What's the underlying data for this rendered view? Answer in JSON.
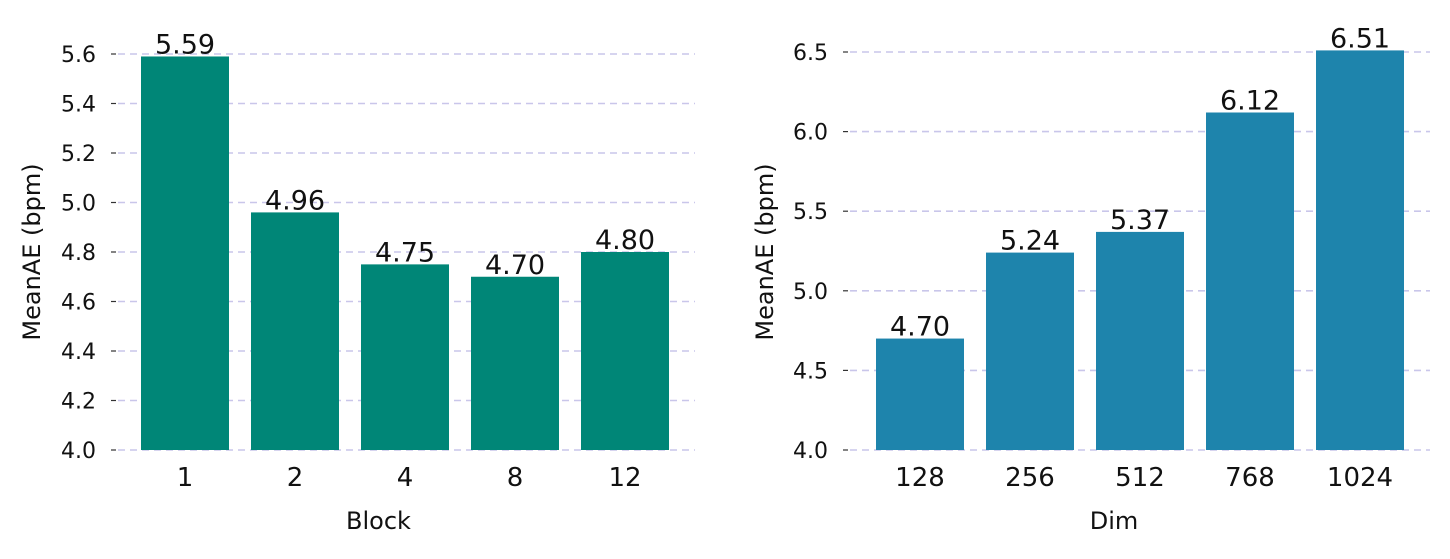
{
  "chart_data": [
    {
      "type": "bar",
      "title": "",
      "xlabel": "Block",
      "ylabel": "MeanAE (bpm)",
      "categories": [
        "1",
        "2",
        "4",
        "8",
        "12"
      ],
      "values": [
        5.59,
        4.96,
        4.75,
        4.7,
        4.8
      ],
      "data_labels": [
        "5.59",
        "4.96",
        "4.75",
        "4.70",
        "4.80"
      ],
      "ylim": [
        4.0,
        5.6
      ],
      "yticks": [
        4.0,
        4.2,
        4.4,
        4.6,
        4.8,
        5.0,
        5.2,
        5.4,
        5.6
      ],
      "ytick_labels": [
        "4.0",
        "4.2",
        "4.4",
        "4.6",
        "4.8",
        "5.0",
        "5.2",
        "5.4",
        "5.6"
      ],
      "grid": true,
      "color": "#008677"
    },
    {
      "type": "bar",
      "title": "",
      "xlabel": "Dim",
      "ylabel": "MeanAE (bpm)",
      "categories": [
        "128",
        "256",
        "512",
        "768",
        "1024"
      ],
      "values": [
        4.7,
        5.24,
        5.37,
        6.12,
        6.51
      ],
      "data_labels": [
        "4.70",
        "5.24",
        "5.37",
        "6.12",
        "6.51"
      ],
      "ylim": [
        4.0,
        6.5
      ],
      "yticks": [
        4.0,
        4.5,
        5.0,
        5.5,
        6.0,
        6.5
      ],
      "ytick_labels": [
        "4.0",
        "4.5",
        "5.0",
        "5.5",
        "6.0",
        "6.5"
      ],
      "grid": true,
      "color": "#1e84ac"
    }
  ]
}
